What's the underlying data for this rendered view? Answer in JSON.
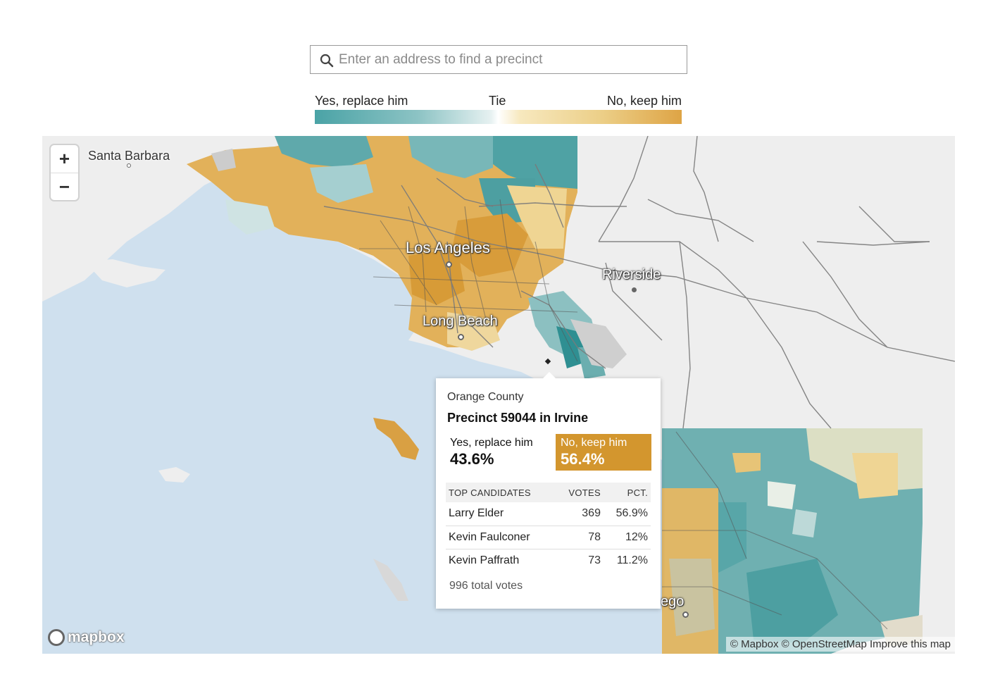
{
  "search": {
    "placeholder": "Enter an address to find a precinct",
    "icon": "search-icon"
  },
  "legend": {
    "left_label": "Yes, replace him",
    "middle_label": "Tie",
    "right_label": "No, keep him",
    "colors": {
      "yes": "#4aa3a6",
      "tie": "#ffffff",
      "no": "#dea445"
    }
  },
  "map": {
    "zoom_in_label": "+",
    "zoom_out_label": "−",
    "places": {
      "santa_barbara": "Santa Barbara",
      "los_angeles": "Los Angeles",
      "riverside": "Riverside",
      "long_beach": "Long Beach",
      "san_diego_partial": "ego"
    },
    "logo_text": "mapbox",
    "attribution": "© Mapbox © OpenStreetMap Improve this map"
  },
  "popup": {
    "county": "Orange County",
    "title": "Precinct 59044 in Irvine",
    "yes": {
      "label": "Yes, replace him",
      "value": "43.6%"
    },
    "no": {
      "label": "No, keep him",
      "value": "56.4%",
      "color": "#d3962e"
    },
    "table": {
      "headers": {
        "candidate": "TOP CANDIDATES",
        "votes": "VOTES",
        "pct": "PCT."
      },
      "rows": [
        {
          "name": "Larry Elder",
          "votes": "369",
          "pct": "56.9%"
        },
        {
          "name": "Kevin Faulconer",
          "votes": "78",
          "pct": "12%"
        },
        {
          "name": "Kevin Paffrath",
          "votes": "73",
          "pct": "11.2%"
        }
      ]
    },
    "total": "996 total votes"
  }
}
